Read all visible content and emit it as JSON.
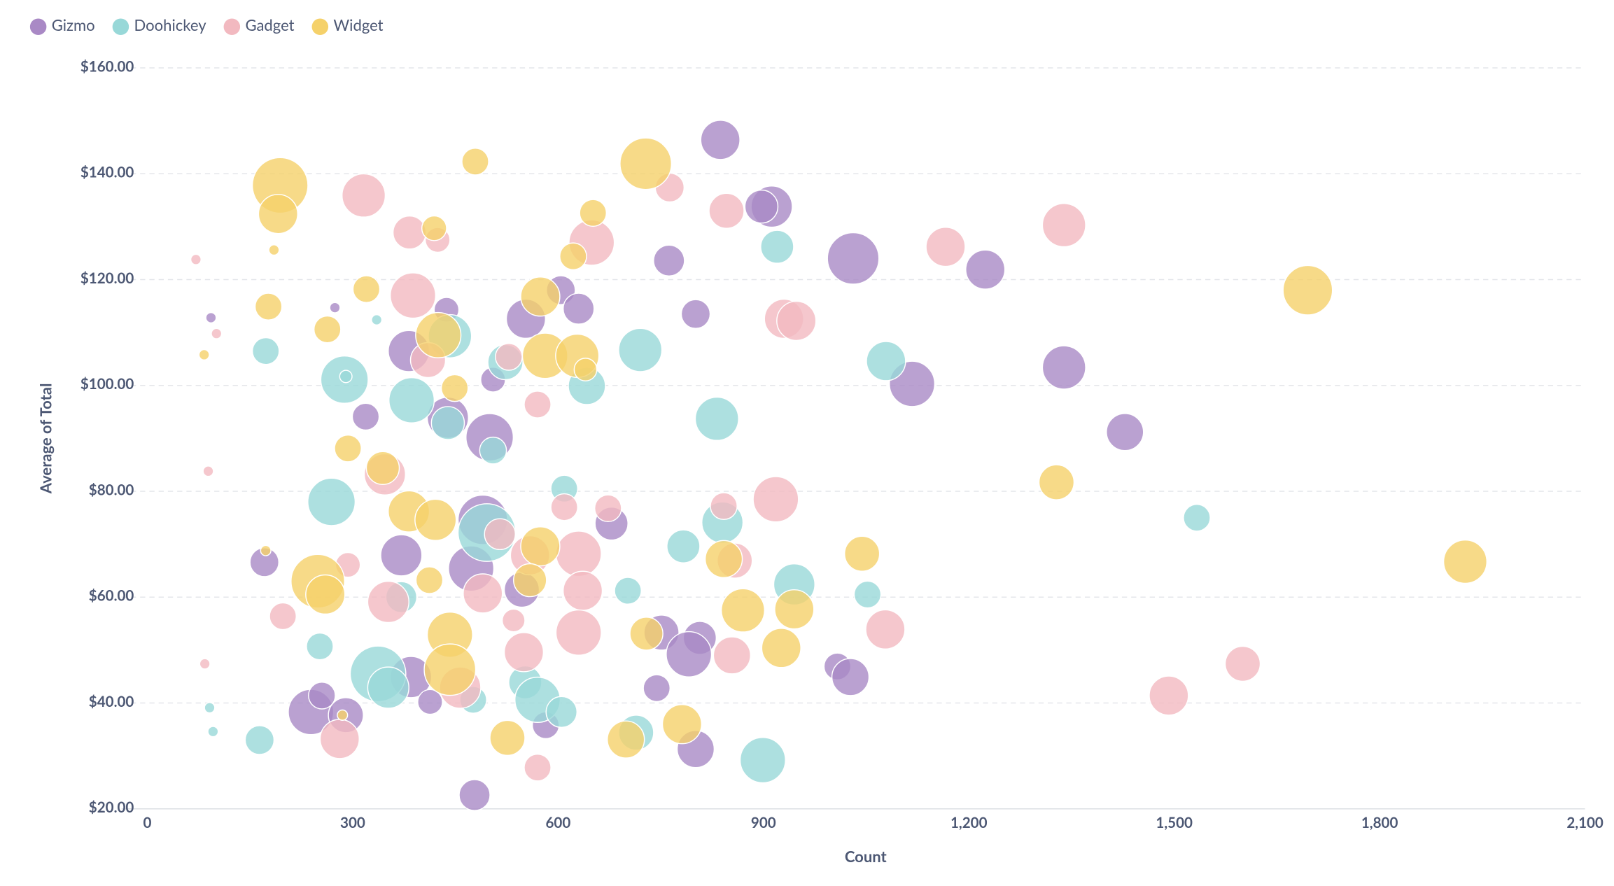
{
  "chart_data": {
    "type": "bubble",
    "x_label": "Count",
    "y_label": "Average of Total",
    "legend": "top-left",
    "grid": true,
    "xlim": [
      0,
      2100
    ],
    "ylim": [
      20,
      160
    ],
    "xticks": [
      0,
      300,
      600,
      900,
      {
        "value": 1200,
        "label": "1,200"
      },
      {
        "value": 1500,
        "label": "1,500"
      },
      {
        "value": 1800,
        "label": "1,800"
      },
      {
        "value": 2100,
        "label": "2,100"
      }
    ],
    "yticks": [
      {
        "value": 20,
        "label": "$20.00"
      },
      {
        "value": 40,
        "label": "$40.00"
      },
      {
        "value": 60,
        "label": "$60.00"
      },
      {
        "value": 80,
        "label": "$80.00"
      },
      {
        "value": 100,
        "label": "$100.00"
      },
      {
        "value": 120,
        "label": "$120.00"
      },
      {
        "value": 140,
        "label": "$140.00"
      },
      {
        "value": 160,
        "label": "$160.00"
      }
    ],
    "series": [
      {
        "name": "Gizmo",
        "color": "#a989c5",
        "x": [
          837,
          912,
          897,
          1031,
          1224,
          762,
          801,
          1117,
          1339,
          1428,
          604,
          630,
          553,
          437,
          382,
          505,
          319,
          439,
          500,
          490,
          678,
          371,
          171,
          473,
          547,
          751,
          807,
          791,
          1008,
          1027,
          744,
          385,
          413,
          239,
          255,
          290,
          582,
          801,
          478,
          93,
          274
        ],
        "y": [
          146.4,
          133.8,
          133.8,
          124.0,
          121.9,
          123.6,
          113.5,
          100.3,
          103.4,
          91.2,
          118.0,
          114.5,
          112.6,
          114.3,
          106.5,
          101.1,
          94.1,
          93.9,
          90.2,
          74.6,
          73.9,
          67.9,
          66.6,
          65.4,
          61.4,
          53.3,
          52.3,
          49.2,
          46.9,
          44.9,
          42.8,
          44.9,
          40.2,
          38.3,
          41.4,
          37.7,
          35.8,
          31.3,
          22.6,
          112.8,
          114.7
        ],
        "sizes": [
          19,
          20,
          16,
          25,
          19,
          15,
          14,
          22,
          21,
          18,
          14,
          15,
          19,
          12,
          20,
          12,
          13,
          20,
          23,
          24,
          16,
          20,
          14,
          22,
          17,
          17,
          16,
          22,
          13,
          18,
          13,
          20,
          12,
          22,
          13,
          17,
          13,
          18,
          15,
          5,
          5
        ]
      },
      {
        "name": "Doohickey",
        "color": "#98d8d8",
        "x": [
          920,
          720,
          1079,
          832,
          173,
          288,
          386,
          442,
          523,
          642,
          439,
          505,
          269,
          609,
          496,
          783,
          840,
          945,
          1052,
          1533,
          702,
          371,
          252,
          337,
          352,
          552,
          570,
          605,
          476,
          714,
          899,
          164,
          91,
          96,
          335,
          290
        ],
        "y": [
          126.2,
          106.7,
          104.6,
          93.7,
          106.5,
          101.1,
          97.2,
          109.3,
          104.4,
          99.9,
          92.9,
          87.7,
          78.0,
          80.5,
          72.2,
          69.6,
          74.1,
          62.4,
          60.5,
          75.0,
          61.2,
          60.0,
          50.7,
          45.5,
          42.9,
          43.9,
          40.6,
          38.3,
          40.6,
          34.4,
          29.2,
          33.0,
          39.1,
          34.6,
          112.4,
          101.7
        ],
        "sizes": [
          16,
          21,
          19,
          21,
          13,
          23,
          22,
          21,
          17,
          18,
          16,
          13,
          23,
          13,
          28,
          16,
          20,
          20,
          13,
          13,
          13,
          15,
          13,
          27,
          20,
          16,
          22,
          15,
          13,
          17,
          22,
          14,
          5,
          5,
          5,
          6
        ]
      },
      {
        "name": "Gadget",
        "color": "#f2b9c0",
        "x": [
          316,
          763,
          846,
          649,
          383,
          424,
          1166,
          1339,
          388,
          930,
          948,
          410,
          528,
          570,
          347,
          609,
          673,
          842,
          918,
          515,
          630,
          559,
          858,
          293,
          490,
          636,
          352,
          198,
          535,
          630,
          550,
          854,
          1078,
          1600,
          1492,
          457,
          281,
          570,
          71,
          101,
          89,
          84
        ],
        "y": [
          135.9,
          137.4,
          133.0,
          127.0,
          128.9,
          127.5,
          126.2,
          130.3,
          117.0,
          112.6,
          112.2,
          104.8,
          105.4,
          96.4,
          83.2,
          77.0,
          76.8,
          77.2,
          78.5,
          71.9,
          68.2,
          67.9,
          66.9,
          66.1,
          60.7,
          61.2,
          59.1,
          56.4,
          55.6,
          53.3,
          49.6,
          49.0,
          53.9,
          47.4,
          41.4,
          42.9,
          33.2,
          27.8,
          123.8,
          109.8,
          83.8,
          47.4
        ],
        "sizes": [
          21,
          14,
          17,
          22,
          16,
          12,
          19,
          21,
          22,
          19,
          19,
          17,
          13,
          13,
          20,
          13,
          13,
          13,
          22,
          15,
          22,
          19,
          17,
          12,
          19,
          19,
          20,
          13,
          11,
          22,
          19,
          18,
          19,
          17,
          19,
          20,
          19,
          13,
          5,
          5,
          5,
          5
        ]
      },
      {
        "name": "Widget",
        "color": "#f5d16a",
        "x": [
          728,
          479,
          194,
          191,
          651,
          419,
          1695,
          622,
          320,
          574,
          177,
          263,
          425,
          581,
          628,
          640,
          449,
          293,
          344,
          382,
          421,
          1328,
          574,
          1044,
          842,
          1925,
          249,
          260,
          412,
          559,
          870,
          945,
          729,
          442,
          442,
          926,
          781,
          526,
          699,
          185,
          83,
          173,
          285
        ],
        "y": [
          141.9,
          142.3,
          137.8,
          132.4,
          132.6,
          129.7,
          118.0,
          124.4,
          118.2,
          116.8,
          114.9,
          110.6,
          109.5,
          105.6,
          105.6,
          103.0,
          99.5,
          88.1,
          84.4,
          76.2,
          74.6,
          81.7,
          69.6,
          68.2,
          67.2,
          66.7,
          63.0,
          60.5,
          63.2,
          63.2,
          57.5,
          57.7,
          53.1,
          52.9,
          46.3,
          50.4,
          36.0,
          33.4,
          33.1,
          125.6,
          105.8,
          68.8,
          37.7
        ],
        "sizes": [
          25,
          13,
          27,
          19,
          13,
          12,
          24,
          13,
          13,
          19,
          13,
          13,
          22,
          22,
          21,
          11,
          13,
          13,
          16,
          20,
          20,
          17,
          19,
          17,
          18,
          21,
          26,
          19,
          13,
          16,
          21,
          19,
          16,
          22,
          25,
          19,
          19,
          17,
          18,
          5,
          5,
          5,
          5
        ]
      }
    ]
  }
}
